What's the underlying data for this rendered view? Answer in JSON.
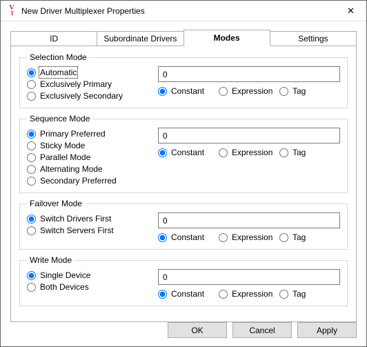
{
  "window": {
    "title": "New Driver Multiplexer Properties",
    "logo_top": "V",
    "logo_bottom": "T",
    "close_glyph": "✕"
  },
  "tabs": {
    "id": "ID",
    "subs": "Subordinate Drivers",
    "modes": "Modes",
    "settings": "Settings"
  },
  "type_labels": {
    "constant": "Constant",
    "expression": "Expression",
    "tag": "Tag"
  },
  "groups": {
    "selection": {
      "legend": "Selection Mode",
      "options": {
        "auto": "Automatic",
        "primary": "Exclusively Primary",
        "secondary": "Exclusively Secondary"
      },
      "value": "0"
    },
    "sequence": {
      "legend": "Sequence Mode",
      "options": {
        "primary_pref": "Primary Preferred",
        "sticky": "Sticky Mode",
        "parallel": "Parallel Mode",
        "alternating": "Alternating Mode",
        "secondary_pref": "Secondary Preferred"
      },
      "value": "0"
    },
    "failover": {
      "legend": "Failover Mode",
      "options": {
        "drivers": "Switch Drivers First",
        "servers": "Switch Servers First"
      },
      "value": "0"
    },
    "write": {
      "legend": "Write Mode",
      "options": {
        "single": "Single Device",
        "both": "Both Devices"
      },
      "value": "0"
    }
  },
  "buttons": {
    "ok": "OK",
    "cancel": "Cancel",
    "apply": "Apply"
  }
}
